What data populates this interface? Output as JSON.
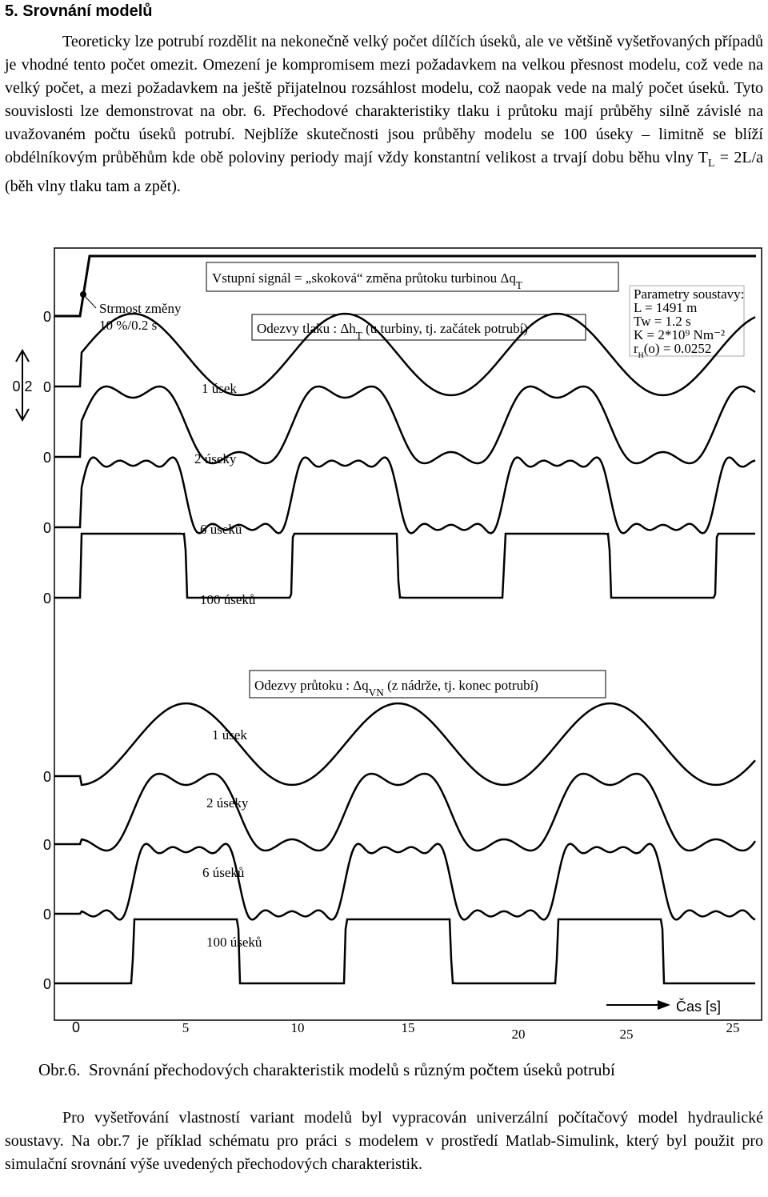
{
  "heading": "5. Srovnání modelů",
  "paragraph1": [
    "Teoreticky lze potrubí rozdělit na nekonečně velký počet dílčích úseků, ale ve většině vyšetřovaných případů je vhodné tento počet omezit. Omezení je kompromisem mezi požadavkem na velkou přesnost modelu, což vede na velký počet, a mezi požadavkem na ještě přijatelnou rozsáhlost modelu, což naopak vede na malý počet úseků. Tyto souvislosti lze demonstrovat na obr. 6. Přechodové charakteristiky tlaku i průtoku mají průběhy silně závislé na uvažovaném počtu úseků potrubí. Nejblíže skutečnosti jsou průběhy modelu se 100 úseky – limitně se blíží obdélníkovým průběhům kde obě poloviny periody mají vždy konstantní velikost a trvají dobu běhu vlny T",
    {
      "sub": "L"
    },
    " = 2L/a  (běh vlny tlaku tam a zpět)."
  ],
  "figure": {
    "input_label": [
      "Vstupní signál = „skoková“ změna průtoku turbinou Δq",
      {
        "sub": "T"
      }
    ],
    "step_label": [
      "Strmost změny",
      "10 %/0.2 s"
    ],
    "pressure_title": [
      "Odezvy tlaku : Δh",
      {
        "sub": "T"
      },
      " (u turbiny, tj. začátek potrubí)"
    ],
    "flow_title": [
      "Odezvy průtoku : Δq",
      {
        "sub": "VN"
      },
      " (z nádrže, tj.  konec potrubí)"
    ],
    "params": [
      [
        "Parametry soustavy:"
      ],
      [
        "L = 1491 m"
      ],
      [
        "Tw = 1.2 s"
      ],
      [
        "K = 2*10⁹ Nm⁻²"
      ],
      [
        "r",
        {
          "sub": "H"
        },
        "(o) = 0.0252"
      ]
    ],
    "pressure_curves": [
      "1 úsek",
      "2 úseky",
      "6 úseků",
      "100 úseků"
    ],
    "flow_curves": [
      "1 úsek",
      "2 úseky",
      "6 úseků",
      "100 úseků"
    ],
    "zero_labels": [
      "0",
      "0",
      "0",
      "0",
      "0",
      "0",
      "0",
      "0",
      "0"
    ],
    "scale_label": "0,2",
    "time_label": "Čas [s]",
    "time_ticks": [
      "0",
      "5",
      "10",
      "15",
      "20",
      "25",
      "25"
    ]
  },
  "caption": "Obr.6.  Srovnání přechodových charakteristik modelů s různým počtem úseků potrubí",
  "paragraph2": "Pro vyšetřování vlastností variant modelů byl vypracován univerzální počítačový model hydraulické soustavy. Na obr.7 je příklad schématu pro práci s modelem v prostředí Matlab-Simulink, který byl použit pro simulační srovnání výše uvedených přechodových charakteristik."
}
